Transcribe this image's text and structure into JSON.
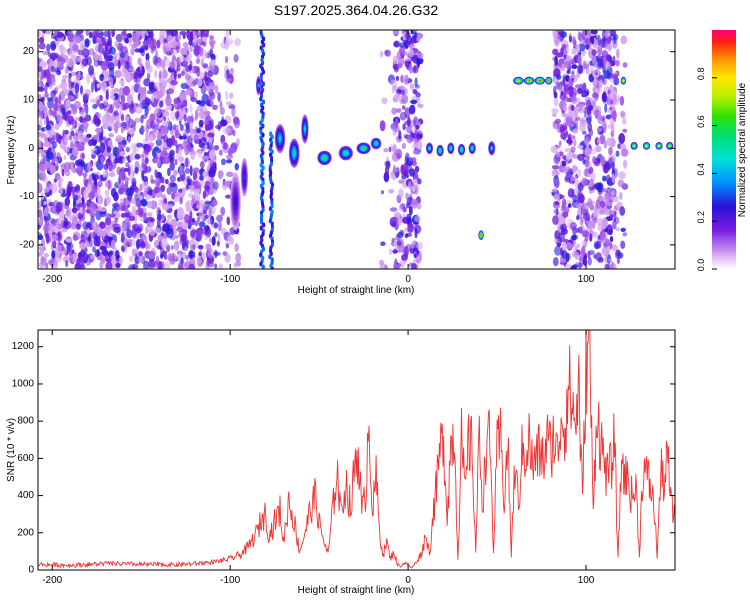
{
  "title": "S197.2025.364.04.26.G32",
  "chart_data": [
    {
      "type": "heatmap",
      "xlabel": "Height of straight line (km)",
      "ylabel": "Frequency (Hz)",
      "xlim": [
        -208,
        150
      ],
      "ylim": [
        -25,
        24.5
      ],
      "xticks": [
        -200,
        -100,
        0,
        100
      ],
      "xtick_labels": [
        "-200",
        "-100",
        "0",
        "100"
      ],
      "yticks": [
        -20,
        -10,
        0,
        10,
        20
      ],
      "ytick_labels": [
        "-20",
        "-10",
        "0",
        "10",
        "20"
      ],
      "colorbar": {
        "label": "Normalized spectral amplitude",
        "range": [
          0,
          1
        ],
        "ticks": [
          0,
          0.2,
          0.4,
          0.6,
          0.8
        ],
        "tick_labels": [
          "0.0",
          "0.2",
          "0.4",
          "0.6",
          "0.8"
        ]
      },
      "noise_regions": [
        {
          "x0": -208,
          "x1": -108,
          "density": 1.0
        },
        {
          "x0": -108,
          "x1": -95,
          "density": 0.35
        },
        {
          "x0": -15,
          "x1": -8,
          "density": 0.2
        },
        {
          "x0": -8,
          "x1": 7,
          "density": 0.9
        },
        {
          "x0": 82,
          "x1": 118,
          "density": 0.95
        },
        {
          "x0": 118,
          "x1": 122,
          "density": 0.3
        }
      ],
      "streaks": [
        {
          "x": -82,
          "y0": -25,
          "y1": 24.5,
          "amplitude": 0.3
        },
        {
          "x": -77,
          "y0": -25,
          "y1": 3,
          "amplitude": 0.3
        }
      ],
      "features": [
        {
          "x": -97,
          "y": -11,
          "amplitude": 0.25,
          "spread_x": 3,
          "spread_y": 6
        },
        {
          "x": -92,
          "y": -6,
          "amplitude": 0.3,
          "spread_x": 2,
          "spread_y": 4
        },
        {
          "x": -84,
          "y": 13,
          "amplitude": 0.4,
          "spread_x": 1.5,
          "spread_y": 2
        },
        {
          "x": -72,
          "y": 2,
          "amplitude": 0.45,
          "spread_x": 3,
          "spread_y": 3
        },
        {
          "x": -64,
          "y": -1,
          "amplitude": 0.5,
          "spread_x": 3,
          "spread_y": 3
        },
        {
          "x": -58,
          "y": 4,
          "amplitude": 0.45,
          "spread_x": 2,
          "spread_y": 3
        },
        {
          "x": -47,
          "y": -2,
          "amplitude": 0.6,
          "spread_x": 4,
          "spread_y": 1.5
        },
        {
          "x": -35,
          "y": -1,
          "amplitude": 0.55,
          "spread_x": 4,
          "spread_y": 1.5
        },
        {
          "x": -25,
          "y": 0,
          "amplitude": 0.6,
          "spread_x": 4,
          "spread_y": 1.2
        },
        {
          "x": -18,
          "y": 1,
          "amplitude": 0.55,
          "spread_x": 3,
          "spread_y": 1.2
        },
        {
          "x": 12,
          "y": 0,
          "amplitude": 0.5,
          "spread_x": 2,
          "spread_y": 1.2
        },
        {
          "x": 18,
          "y": -0.5,
          "amplitude": 0.6,
          "spread_x": 2,
          "spread_y": 1.2
        },
        {
          "x": 24,
          "y": 0,
          "amplitude": 0.55,
          "spread_x": 2,
          "spread_y": 1.2
        },
        {
          "x": 30,
          "y": -0.3,
          "amplitude": 0.6,
          "spread_x": 2,
          "spread_y": 1.2
        },
        {
          "x": 36,
          "y": 0,
          "amplitude": 0.55,
          "spread_x": 2,
          "spread_y": 1.2
        },
        {
          "x": 47,
          "y": 0,
          "amplitude": 0.45,
          "spread_x": 2,
          "spread_y": 1.5
        },
        {
          "x": 41,
          "y": -18,
          "amplitude": 0.9,
          "spread_x": 1.5,
          "spread_y": 1
        },
        {
          "x": 62,
          "y": 14,
          "amplitude": 0.85,
          "spread_x": 3,
          "spread_y": 0.8
        },
        {
          "x": 68,
          "y": 14,
          "amplitude": 0.9,
          "spread_x": 3,
          "spread_y": 0.8
        },
        {
          "x": 74,
          "y": 14,
          "amplitude": 0.95,
          "spread_x": 3,
          "spread_y": 0.8
        },
        {
          "x": 79,
          "y": 14,
          "amplitude": 0.9,
          "spread_x": 2,
          "spread_y": 0.8
        },
        {
          "x": 121,
          "y": 14,
          "amplitude": 0.8,
          "spread_x": 1.5,
          "spread_y": 0.8
        },
        {
          "x": 127,
          "y": 0.5,
          "amplitude": 0.75,
          "spread_x": 2,
          "spread_y": 0.8
        },
        {
          "x": 134,
          "y": 0.5,
          "amplitude": 0.8,
          "spread_x": 2,
          "spread_y": 0.8
        },
        {
          "x": 141,
          "y": 0.5,
          "amplitude": 0.8,
          "spread_x": 2,
          "spread_y": 0.8
        },
        {
          "x": 147,
          "y": 0.5,
          "amplitude": 0.75,
          "spread_x": 2,
          "spread_y": 0.8
        }
      ]
    },
    {
      "type": "line",
      "xlabel": "Height of straight line (km)",
      "ylabel": "SNR (10 * v/v)",
      "xlim": [
        -208,
        150
      ],
      "ylim": [
        0,
        1290
      ],
      "xticks": [
        -200,
        -100,
        0,
        100
      ],
      "xtick_labels": [
        "-200",
        "-100",
        "0",
        "100"
      ],
      "yticks": [
        0,
        200,
        400,
        600,
        800,
        1000,
        1200
      ],
      "ytick_labels": [
        "0",
        "200",
        "400",
        "600",
        "800",
        "1000",
        "1200"
      ],
      "color": "#ee3333",
      "series": [
        {
          "name": "SNR",
          "x": [
            -208,
            -190,
            -170,
            -150,
            -130,
            -112,
            -105,
            -100,
            -95,
            -90,
            -85,
            -82,
            -80,
            -78,
            -75,
            -72,
            -70,
            -67,
            -64,
            -61,
            -58,
            -55,
            -52,
            -50,
            -48,
            -45,
            -42,
            -40,
            -38,
            -35,
            -32,
            -30,
            -28,
            -26,
            -24,
            -22,
            -20,
            -18,
            -16,
            -14,
            -12,
            -10,
            -8,
            -6,
            -4,
            -2,
            0,
            2,
            5,
            8,
            10,
            12,
            14,
            16,
            18,
            20,
            22,
            24,
            26,
            28,
            30,
            32,
            34,
            36,
            38,
            40,
            42,
            44,
            46,
            48,
            50,
            52,
            54,
            56,
            58,
            60,
            62,
            64,
            66,
            68,
            70,
            72,
            74,
            76,
            78,
            80,
            82,
            84,
            86,
            88,
            90,
            92,
            94,
            96,
            98,
            100,
            102,
            104,
            106,
            108,
            110,
            112,
            114,
            116,
            118,
            120,
            122,
            124,
            126,
            128,
            130,
            132,
            134,
            136,
            138,
            140,
            142,
            144,
            146,
            148,
            150
          ],
          "y": [
            30,
            25,
            35,
            30,
            28,
            40,
            50,
            60,
            80,
            120,
            200,
            280,
            300,
            180,
            260,
            320,
            150,
            380,
            260,
            100,
            200,
            320,
            400,
            250,
            180,
            80,
            350,
            560,
            300,
            470,
            320,
            580,
            640,
            300,
            400,
            840,
            300,
            500,
            200,
            80,
            150,
            60,
            100,
            30,
            20,
            40,
            30,
            10,
            50,
            100,
            200,
            80,
            300,
            450,
            640,
            700,
            300,
            670,
            730,
            60,
            700,
            400,
            680,
            650,
            100,
            720,
            350,
            700,
            680,
            100,
            640,
            700,
            380,
            680,
            80,
            560,
            350,
            620,
            640,
            700,
            550,
            600,
            640,
            580,
            700,
            650,
            720,
            600,
            850,
            760,
            1000,
            900,
            780,
            1000,
            350,
            1100,
            1290,
            280,
            900,
            700,
            600,
            500,
            550,
            700,
            60,
            600,
            500,
            480,
            380,
            450,
            80,
            560,
            500,
            460,
            360,
            80,
            520,
            480,
            600,
            330,
            280
          ]
        }
      ]
    }
  ]
}
